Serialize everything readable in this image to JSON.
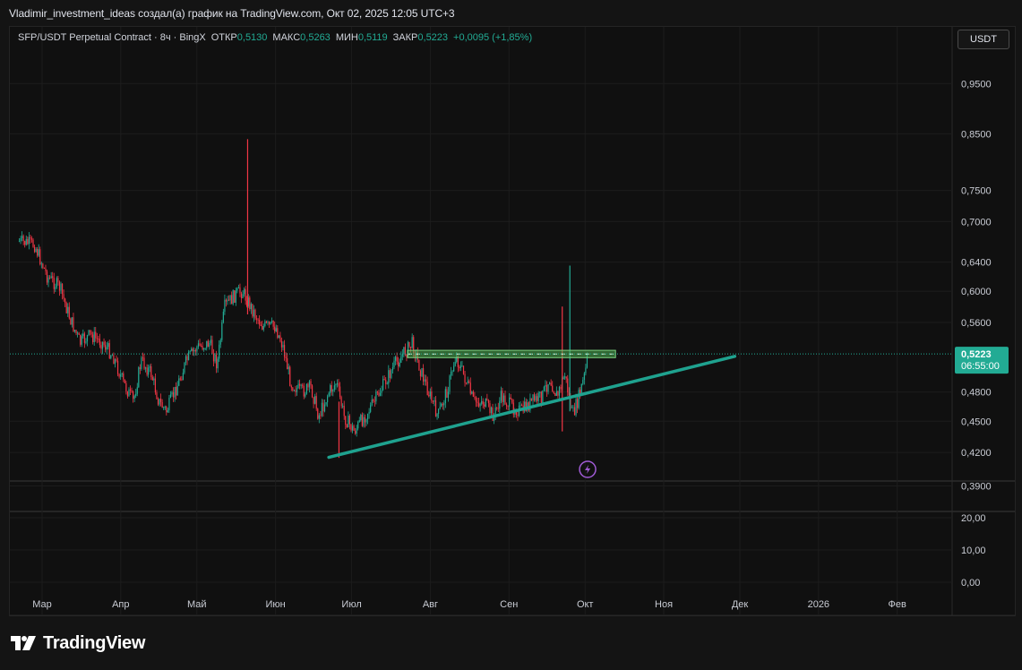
{
  "header": {
    "title": "Vladimir_investment_ideas создал(а) график на TradingView.com, Окт 02, 2025 12:05 UTC+3"
  },
  "legend": {
    "symbol": "SFP/USDT Perpetual Contract · 8ч · BingX",
    "open_label": "ОТКР",
    "open_value": "0,5130",
    "high_label": "МАКС",
    "high_value": "0,5263",
    "low_label": "МИН",
    "low_value": "0,5119",
    "close_label": "ЗАКР",
    "close_value": "0,5223",
    "change": "+0,0095 (+1,85%)"
  },
  "currency_button": "USDT",
  "price_badge": {
    "price": "0,5223",
    "countdown": "06:55:00"
  },
  "footer": {
    "brand": "TradingView"
  },
  "colors": {
    "up": "#22ab94",
    "down": "#f23645",
    "trendline": "#1fa28f",
    "zone_fill": "#4caf50",
    "badge": "#22ab94",
    "signal": "#a05bd5"
  },
  "chart_data": {
    "type": "candlestick",
    "scale": "log",
    "y_ticks": [
      "0,9500",
      "0,8500",
      "0,7500",
      "0,7000",
      "0,6400",
      "0,6000",
      "0,5600",
      "0,4800",
      "0,4500",
      "0,4200",
      "0,3900"
    ],
    "x_ticks": [
      "Мар",
      "Апр",
      "Май",
      "Июн",
      "Июл",
      "Авг",
      "Сен",
      "Окт",
      "Ноя",
      "Дек",
      "2026",
      "Фев"
    ],
    "volume_ticks": [
      "20,00",
      "10,00",
      "0,00"
    ],
    "last_price": 0.5223,
    "price_path": [
      [
        "2025-02-20",
        0.67
      ],
      [
        "2025-02-26",
        0.665
      ],
      [
        "2025-03-03",
        0.62
      ],
      [
        "2025-03-08",
        0.605
      ],
      [
        "2025-03-12",
        0.565
      ],
      [
        "2025-03-16",
        0.535
      ],
      [
        "2025-03-20",
        0.545
      ],
      [
        "2025-03-25",
        0.535
      ],
      [
        "2025-03-29",
        0.52
      ],
      [
        "2025-04-02",
        0.49
      ],
      [
        "2025-04-06",
        0.47
      ],
      [
        "2025-04-09",
        0.515
      ],
      [
        "2025-04-13",
        0.5
      ],
      [
        "2025-04-16",
        0.47
      ],
      [
        "2025-04-19",
        0.46
      ],
      [
        "2025-04-23",
        0.485
      ],
      [
        "2025-04-27",
        0.515
      ],
      [
        "2025-05-01",
        0.53
      ],
      [
        "2025-05-06",
        0.535
      ],
      [
        "2025-05-09",
        0.51
      ],
      [
        "2025-05-12",
        0.58
      ],
      [
        "2025-05-16",
        0.595
      ],
      [
        "2025-05-19",
        0.6
      ],
      [
        "2025-05-23",
        0.575
      ],
      [
        "2025-05-27",
        0.555
      ],
      [
        "2025-06-01",
        0.555
      ],
      [
        "2025-06-04",
        0.53
      ],
      [
        "2025-06-07",
        0.49
      ],
      [
        "2025-06-11",
        0.48
      ],
      [
        "2025-06-15",
        0.485
      ],
      [
        "2025-06-18",
        0.455
      ],
      [
        "2025-06-22",
        0.48
      ],
      [
        "2025-06-25",
        0.49
      ],
      [
        "2025-06-28",
        0.455
      ],
      [
        "2025-07-02",
        0.44
      ],
      [
        "2025-07-06",
        0.455
      ],
      [
        "2025-07-10",
        0.47
      ],
      [
        "2025-07-14",
        0.49
      ],
      [
        "2025-07-18",
        0.51
      ],
      [
        "2025-07-22",
        0.525
      ],
      [
        "2025-07-25",
        0.535
      ],
      [
        "2025-07-28",
        0.505
      ],
      [
        "2025-08-01",
        0.475
      ],
      [
        "2025-08-04",
        0.455
      ],
      [
        "2025-08-08",
        0.485
      ],
      [
        "2025-08-11",
        0.52
      ],
      [
        "2025-08-14",
        0.5
      ],
      [
        "2025-08-18",
        0.47
      ],
      [
        "2025-08-22",
        0.47
      ],
      [
        "2025-08-26",
        0.455
      ],
      [
        "2025-08-29",
        0.475
      ],
      [
        "2025-09-02",
        0.465
      ],
      [
        "2025-09-06",
        0.46
      ],
      [
        "2025-09-10",
        0.47
      ],
      [
        "2025-09-14",
        0.475
      ],
      [
        "2025-09-17",
        0.495
      ],
      [
        "2025-09-20",
        0.475
      ],
      [
        "2025-09-23",
        0.5
      ],
      [
        "2025-09-26",
        0.455
      ],
      [
        "2025-09-28",
        0.47
      ],
      [
        "2025-10-01",
        0.5
      ],
      [
        "2025-10-02",
        0.5223
      ]
    ],
    "wicks": [
      {
        "date": "2025-05-21",
        "high": 0.84,
        "low": 0.57,
        "color": "down"
      },
      {
        "date": "2025-06-26",
        "high": 0.47,
        "low": 0.415,
        "color": "down"
      },
      {
        "date": "2025-09-22",
        "high": 0.58,
        "low": 0.44,
        "color": "down"
      },
      {
        "date": "2025-09-25",
        "high": 0.635,
        "low": 0.46,
        "color": "up"
      }
    ],
    "annotations": [
      {
        "type": "trendline",
        "from": [
          "2025-06-22",
          0.4155
        ],
        "to": [
          "2025-11-29",
          0.5195
        ]
      },
      {
        "type": "zone",
        "from_date": "2025-07-23",
        "to_date": "2025-10-13",
        "low": 0.518,
        "high": 0.5265
      }
    ]
  }
}
